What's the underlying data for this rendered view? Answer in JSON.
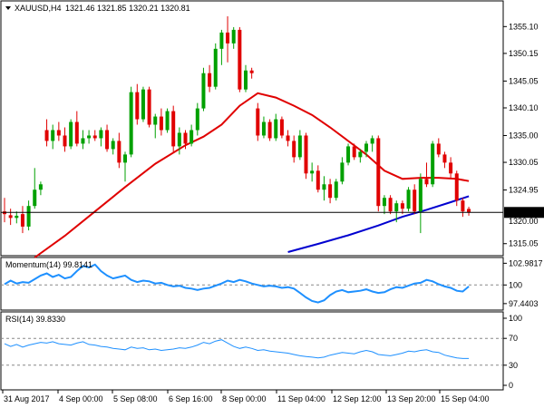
{
  "chart_data": {
    "type": "candlestick",
    "header": {
      "symbol_timeframe": "XAUUSD,H4",
      "ohlc": "1321.46 1321.85 1320.21 1320.81"
    },
    "colors": {
      "up": "#00a000",
      "down": "#e00000",
      "ma20": "#e00000",
      "ma200": "#0000d0",
      "indicator": "#1e90ff",
      "current_price_line": "#000000"
    },
    "price": {
      "ylim": [
        1313.5,
        1359.0
      ],
      "ticks": [
        "1355.10",
        "1350.15",
        "1345.05",
        "1340.10",
        "1335.00",
        "1330.05",
        "1324.95",
        "1315.05"
      ],
      "current_price_label": "1320.81",
      "current_price": 1320.81,
      "partially_hidden_label": "1320.00"
    },
    "candles": [
      {
        "o": 1321.0,
        "h": 1323.5,
        "l": 1319.0,
        "c": 1320.5
      },
      {
        "o": 1320.3,
        "h": 1321.5,
        "l": 1318.5,
        "c": 1319.8
      },
      {
        "o": 1319.8,
        "h": 1321.0,
        "l": 1318.8,
        "c": 1320.2
      },
      {
        "o": 1320.5,
        "h": 1322.0,
        "l": 1317.0,
        "c": 1318.2
      },
      {
        "o": 1318.2,
        "h": 1323.0,
        "l": 1317.5,
        "c": 1322.0
      },
      {
        "o": 1322.0,
        "h": 1329.0,
        "l": 1321.5,
        "c": 1325.0
      },
      {
        "o": 1325.0,
        "h": 1326.5,
        "l": 1324.0,
        "c": 1326.0
      },
      {
        "o": 1336.0,
        "h": 1338.0,
        "l": 1333.0,
        "c": 1334.0
      },
      {
        "o": 1334.0,
        "h": 1337.0,
        "l": 1332.5,
        "c": 1336.0
      },
      {
        "o": 1336.0,
        "h": 1337.5,
        "l": 1334.0,
        "c": 1335.0
      },
      {
        "o": 1335.0,
        "h": 1336.5,
        "l": 1332.0,
        "c": 1333.0
      },
      {
        "o": 1333.0,
        "h": 1338.0,
        "l": 1332.5,
        "c": 1337.5
      },
      {
        "o": 1337.5,
        "h": 1339.5,
        "l": 1333.0,
        "c": 1333.5
      },
      {
        "o": 1333.5,
        "h": 1336.0,
        "l": 1332.5,
        "c": 1334.5
      },
      {
        "o": 1334.5,
        "h": 1336.0,
        "l": 1333.5,
        "c": 1335.0
      },
      {
        "o": 1335.0,
        "h": 1336.0,
        "l": 1334.0,
        "c": 1334.5
      },
      {
        "o": 1334.5,
        "h": 1336.5,
        "l": 1333.0,
        "c": 1336.0
      },
      {
        "o": 1336.0,
        "h": 1337.0,
        "l": 1332.0,
        "c": 1332.5
      },
      {
        "o": 1332.5,
        "h": 1334.5,
        "l": 1331.5,
        "c": 1334.0
      },
      {
        "o": 1334.0,
        "h": 1335.5,
        "l": 1329.0,
        "c": 1330.0
      },
      {
        "o": 1330.0,
        "h": 1332.0,
        "l": 1326.5,
        "c": 1331.5
      },
      {
        "o": 1331.5,
        "h": 1344.0,
        "l": 1331.0,
        "c": 1343.0
      },
      {
        "o": 1343.0,
        "h": 1344.5,
        "l": 1337.0,
        "c": 1338.0
      },
      {
        "o": 1338.0,
        "h": 1344.0,
        "l": 1337.5,
        "c": 1343.5
      },
      {
        "o": 1343.5,
        "h": 1344.0,
        "l": 1336.5,
        "c": 1337.0
      },
      {
        "o": 1337.0,
        "h": 1339.0,
        "l": 1334.5,
        "c": 1338.5
      },
      {
        "o": 1338.5,
        "h": 1340.0,
        "l": 1335.0,
        "c": 1336.0
      },
      {
        "o": 1336.0,
        "h": 1340.0,
        "l": 1335.5,
        "c": 1339.5
      },
      {
        "o": 1339.5,
        "h": 1340.5,
        "l": 1332.0,
        "c": 1333.0
      },
      {
        "o": 1333.0,
        "h": 1336.5,
        "l": 1331.5,
        "c": 1335.5
      },
      {
        "o": 1335.5,
        "h": 1336.0,
        "l": 1332.5,
        "c": 1333.5
      },
      {
        "o": 1333.5,
        "h": 1337.0,
        "l": 1333.0,
        "c": 1336.0
      },
      {
        "o": 1336.0,
        "h": 1341.0,
        "l": 1335.0,
        "c": 1340.0
      },
      {
        "o": 1340.0,
        "h": 1347.5,
        "l": 1339.5,
        "c": 1346.5
      },
      {
        "o": 1346.5,
        "h": 1348.0,
        "l": 1343.0,
        "c": 1344.0
      },
      {
        "o": 1344.0,
        "h": 1352.0,
        "l": 1343.5,
        "c": 1351.0
      },
      {
        "o": 1351.0,
        "h": 1354.5,
        "l": 1348.0,
        "c": 1354.0
      },
      {
        "o": 1354.0,
        "h": 1357.0,
        "l": 1348.5,
        "c": 1352.0
      },
      {
        "o": 1352.0,
        "h": 1355.0,
        "l": 1351.0,
        "c": 1354.5
      },
      {
        "o": 1354.5,
        "h": 1355.0,
        "l": 1343.0,
        "c": 1343.5
      },
      {
        "o": 1343.5,
        "h": 1348.0,
        "l": 1343.0,
        "c": 1347.0
      },
      {
        "o": 1347.0,
        "h": 1347.5,
        "l": 1345.5,
        "c": 1346.5
      },
      {
        "o": 1340.0,
        "h": 1341.0,
        "l": 1334.0,
        "c": 1335.0
      },
      {
        "o": 1335.0,
        "h": 1338.5,
        "l": 1334.5,
        "c": 1337.5
      },
      {
        "o": 1337.5,
        "h": 1338.0,
        "l": 1334.0,
        "c": 1334.5
      },
      {
        "o": 1334.5,
        "h": 1339.0,
        "l": 1334.0,
        "c": 1338.0
      },
      {
        "o": 1338.0,
        "h": 1338.5,
        "l": 1334.5,
        "c": 1335.0
      },
      {
        "o": 1335.0,
        "h": 1336.0,
        "l": 1333.0,
        "c": 1334.0
      },
      {
        "o": 1334.0,
        "h": 1335.0,
        "l": 1330.0,
        "c": 1331.0
      },
      {
        "o": 1331.0,
        "h": 1336.0,
        "l": 1330.5,
        "c": 1335.0
      },
      {
        "o": 1335.0,
        "h": 1335.5,
        "l": 1327.0,
        "c": 1328.0
      },
      {
        "o": 1328.0,
        "h": 1330.0,
        "l": 1326.5,
        "c": 1328.5
      },
      {
        "o": 1328.5,
        "h": 1329.5,
        "l": 1324.5,
        "c": 1325.0
      },
      {
        "o": 1325.0,
        "h": 1327.5,
        "l": 1323.0,
        "c": 1326.0
      },
      {
        "o": 1326.0,
        "h": 1327.0,
        "l": 1322.5,
        "c": 1323.5
      },
      {
        "o": 1323.5,
        "h": 1327.0,
        "l": 1323.0,
        "c": 1326.5
      },
      {
        "o": 1326.5,
        "h": 1331.0,
        "l": 1326.0,
        "c": 1330.0
      },
      {
        "o": 1330.0,
        "h": 1333.5,
        "l": 1329.5,
        "c": 1333.0
      },
      {
        "o": 1333.0,
        "h": 1333.5,
        "l": 1330.5,
        "c": 1331.0
      },
      {
        "o": 1331.0,
        "h": 1332.5,
        "l": 1330.0,
        "c": 1332.0
      },
      {
        "o": 1332.0,
        "h": 1334.0,
        "l": 1331.0,
        "c": 1333.5
      },
      {
        "o": 1333.5,
        "h": 1335.0,
        "l": 1332.0,
        "c": 1334.5
      },
      {
        "o": 1334.5,
        "h": 1335.0,
        "l": 1321.0,
        "c": 1322.0
      },
      {
        "o": 1322.0,
        "h": 1324.0,
        "l": 1320.5,
        "c": 1323.5
      },
      {
        "o": 1323.5,
        "h": 1324.0,
        "l": 1320.5,
        "c": 1321.0
      },
      {
        "o": 1321.0,
        "h": 1323.0,
        "l": 1319.0,
        "c": 1322.5
      },
      {
        "o": 1322.5,
        "h": 1323.0,
        "l": 1320.5,
        "c": 1321.5
      },
      {
        "o": 1321.5,
        "h": 1325.5,
        "l": 1321.0,
        "c": 1325.0
      },
      {
        "o": 1325.0,
        "h": 1326.0,
        "l": 1320.5,
        "c": 1321.0
      },
      {
        "o": 1321.0,
        "h": 1328.0,
        "l": 1317.0,
        "c": 1327.0
      },
      {
        "o": 1327.0,
        "h": 1330.0,
        "l": 1325.5,
        "c": 1326.0
      },
      {
        "o": 1326.0,
        "h": 1334.0,
        "l": 1325.5,
        "c": 1333.5
      },
      {
        "o": 1333.5,
        "h": 1334.5,
        "l": 1331.0,
        "c": 1331.5
      },
      {
        "o": 1331.5,
        "h": 1332.0,
        "l": 1329.0,
        "c": 1330.0
      },
      {
        "o": 1330.0,
        "h": 1331.0,
        "l": 1327.0,
        "c": 1328.0
      },
      {
        "o": 1328.0,
        "h": 1328.5,
        "l": 1322.0,
        "c": 1323.0
      },
      {
        "o": 1323.0,
        "h": 1323.5,
        "l": 1320.0,
        "c": 1321.0
      },
      {
        "o": 1321.46,
        "h": 1321.85,
        "l": 1320.21,
        "c": 1320.81
      }
    ],
    "ma20": [
      {
        "i": 5,
        "v": 1312.5
      },
      {
        "i": 10,
        "v": 1316.5
      },
      {
        "i": 15,
        "v": 1321.0
      },
      {
        "i": 20,
        "v": 1325.5
      },
      {
        "i": 25,
        "v": 1329.8
      },
      {
        "i": 30,
        "v": 1333.2
      },
      {
        "i": 33,
        "v": 1334.8
      },
      {
        "i": 36,
        "v": 1337.0
      },
      {
        "i": 39,
        "v": 1340.5
      },
      {
        "i": 42,
        "v": 1342.8
      },
      {
        "i": 45,
        "v": 1342.0
      },
      {
        "i": 48,
        "v": 1340.5
      },
      {
        "i": 51,
        "v": 1338.8
      },
      {
        "i": 54,
        "v": 1336.5
      },
      {
        "i": 57,
        "v": 1334.0
      },
      {
        "i": 60,
        "v": 1331.5
      },
      {
        "i": 63,
        "v": 1328.5
      },
      {
        "i": 66,
        "v": 1327.0
      },
      {
        "i": 69,
        "v": 1327.2
      },
      {
        "i": 72,
        "v": 1327.2
      },
      {
        "i": 75,
        "v": 1327.0
      },
      {
        "i": 77,
        "v": 1326.6
      }
    ],
    "ma200": [
      {
        "i": 47,
        "v": 1313.5
      },
      {
        "i": 52,
        "v": 1315.0
      },
      {
        "i": 57,
        "v": 1316.6
      },
      {
        "i": 62,
        "v": 1318.4
      },
      {
        "i": 66,
        "v": 1320.0
      },
      {
        "i": 70,
        "v": 1321.3
      },
      {
        "i": 74,
        "v": 1322.7
      },
      {
        "i": 77,
        "v": 1323.8
      }
    ],
    "momentum": {
      "label": "Momentum(14) 99.8141",
      "ylim": [
        96.8,
        103.4
      ],
      "ticks": [
        "102.9817",
        "100",
        "97.4403"
      ],
      "values": [
        100.1,
        100.6,
        100.2,
        100.4,
        100.3,
        100.8,
        101.3,
        101.6,
        101.1,
        101.4,
        100.9,
        101.1,
        101.9,
        102.6,
        102.4,
        102.8,
        101.9,
        101.3,
        100.9,
        101.1,
        101.3,
        100.7,
        100.4,
        100.6,
        100.5,
        100.2,
        100.3,
        100.0,
        99.8,
        99.9,
        99.6,
        99.5,
        99.3,
        99.5,
        99.6,
        99.9,
        100.2,
        100.6,
        100.4,
        100.7,
        100.5,
        100.2,
        100.0,
        99.8,
        99.9,
        99.8,
        99.6,
        99.7,
        99.5,
        98.9,
        98.3,
        97.8,
        97.6,
        97.9,
        98.6,
        99.1,
        99.3,
        99.0,
        99.1,
        99.2,
        99.4,
        99.1,
        98.9,
        99.0,
        99.4,
        99.7,
        99.6,
        99.9,
        100.2,
        100.3,
        100.7,
        100.5,
        100.1,
        99.8,
        99.6,
        99.2,
        99.1,
        99.8
      ]
    },
    "rsi": {
      "label": "RSI(14) 39.8330",
      "ylim": [
        0,
        100
      ],
      "ticks": [
        "100",
        "70",
        "30",
        "0"
      ],
      "levels": [
        70,
        30
      ],
      "values": [
        62,
        58,
        61,
        57,
        60,
        62,
        64,
        63,
        65,
        62,
        61,
        60,
        63,
        65,
        61,
        60,
        58,
        57,
        55,
        54,
        53,
        57,
        55,
        56,
        53,
        54,
        52,
        53,
        54,
        56,
        55,
        57,
        60,
        64,
        62,
        66,
        68,
        63,
        58,
        55,
        57,
        55,
        52,
        53,
        51,
        50,
        49,
        48,
        46,
        44,
        43,
        42,
        41,
        42,
        45,
        47,
        49,
        48,
        47,
        50,
        52,
        50,
        46,
        45,
        44,
        46,
        48,
        51,
        50,
        52,
        53,
        50,
        49,
        45,
        43,
        41,
        40,
        40
      ]
    },
    "x_labels": [
      {
        "i": 0,
        "text": "31 Aug 2017"
      },
      {
        "i": 12,
        "text": "4 Sep 00:00"
      },
      {
        "i": 22,
        "text": "5 Sep 08:00"
      },
      {
        "i": 32,
        "text": "6 Sep 16:00"
      },
      {
        "i": 42,
        "text": "8 Sep 00:00"
      },
      {
        "i": 52,
        "text": "11 Sep 04:00"
      },
      {
        "i": 62,
        "text": "12 Sep 12:00"
      },
      {
        "i": 72,
        "text": "13 Sep 20:00"
      },
      {
        "i": 78,
        "text": "15 Sep 04:00"
      }
    ]
  }
}
